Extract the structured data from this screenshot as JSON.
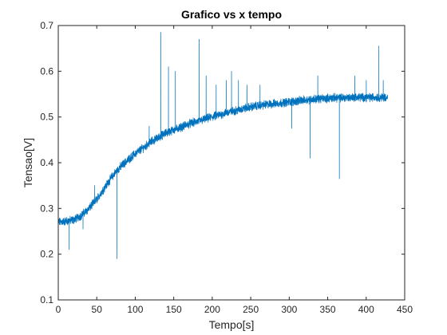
{
  "chart_data": {
    "type": "line",
    "title": "Grafico vs x tempo",
    "xlabel": "Tempo[s]",
    "ylabel": "Tensao[V]",
    "xlim": [
      0,
      450
    ],
    "ylim": [
      0.1,
      0.7
    ],
    "x_ticks": [
      0,
      50,
      100,
      150,
      200,
      250,
      300,
      350,
      400,
      450
    ],
    "y_ticks": [
      0.1,
      0.2,
      0.3,
      0.4,
      0.5,
      0.6,
      0.7
    ],
    "x_tick_labels": [
      "0",
      "50",
      "100",
      "150",
      "200",
      "250",
      "300",
      "350",
      "400",
      "450"
    ],
    "y_tick_labels": [
      "0.1",
      "0.2",
      "0.3",
      "0.4",
      "0.5",
      "0.6",
      "0.7"
    ],
    "grid": false,
    "box": true,
    "series": [
      {
        "color": "#0072BD",
        "x": [
          0,
          10,
          20,
          30,
          40,
          50,
          60,
          70,
          80,
          90,
          100,
          110,
          120,
          130,
          140,
          150,
          160,
          170,
          180,
          190,
          200,
          210,
          220,
          230,
          240,
          250,
          260,
          270,
          280,
          290,
          300,
          310,
          320,
          330,
          340,
          350,
          360,
          370,
          380,
          390,
          400,
          410,
          420,
          428
        ],
        "y": [
          0.27,
          0.272,
          0.275,
          0.285,
          0.3,
          0.32,
          0.345,
          0.37,
          0.39,
          0.405,
          0.42,
          0.432,
          0.445,
          0.455,
          0.465,
          0.472,
          0.478,
          0.485,
          0.49,
          0.495,
          0.5,
          0.505,
          0.51,
          0.514,
          0.518,
          0.522,
          0.525,
          0.527,
          0.529,
          0.531,
          0.533,
          0.535,
          0.537,
          0.539,
          0.54,
          0.541,
          0.542,
          0.542,
          0.543,
          0.543,
          0.543,
          0.543,
          0.543,
          0.543
        ],
        "spikes": [
          {
            "x": 14,
            "y": 0.21
          },
          {
            "x": 32,
            "y": 0.255
          },
          {
            "x": 47,
            "y": 0.35
          },
          {
            "x": 76,
            "y": 0.19
          },
          {
            "x": 95,
            "y": 0.41
          },
          {
            "x": 118,
            "y": 0.48
          },
          {
            "x": 133,
            "y": 0.685
          },
          {
            "x": 143,
            "y": 0.61
          },
          {
            "x": 152,
            "y": 0.6
          },
          {
            "x": 183,
            "y": 0.67
          },
          {
            "x": 192,
            "y": 0.59
          },
          {
            "x": 205,
            "y": 0.57
          },
          {
            "x": 218,
            "y": 0.58
          },
          {
            "x": 225,
            "y": 0.6
          },
          {
            "x": 234,
            "y": 0.58
          },
          {
            "x": 245,
            "y": 0.57
          },
          {
            "x": 262,
            "y": 0.57
          },
          {
            "x": 303,
            "y": 0.475
          },
          {
            "x": 327,
            "y": 0.41
          },
          {
            "x": 337,
            "y": 0.59
          },
          {
            "x": 365,
            "y": 0.365
          },
          {
            "x": 385,
            "y": 0.59
          },
          {
            "x": 400,
            "y": 0.58
          },
          {
            "x": 416,
            "y": 0.655
          },
          {
            "x": 422,
            "y": 0.58
          }
        ]
      }
    ]
  }
}
